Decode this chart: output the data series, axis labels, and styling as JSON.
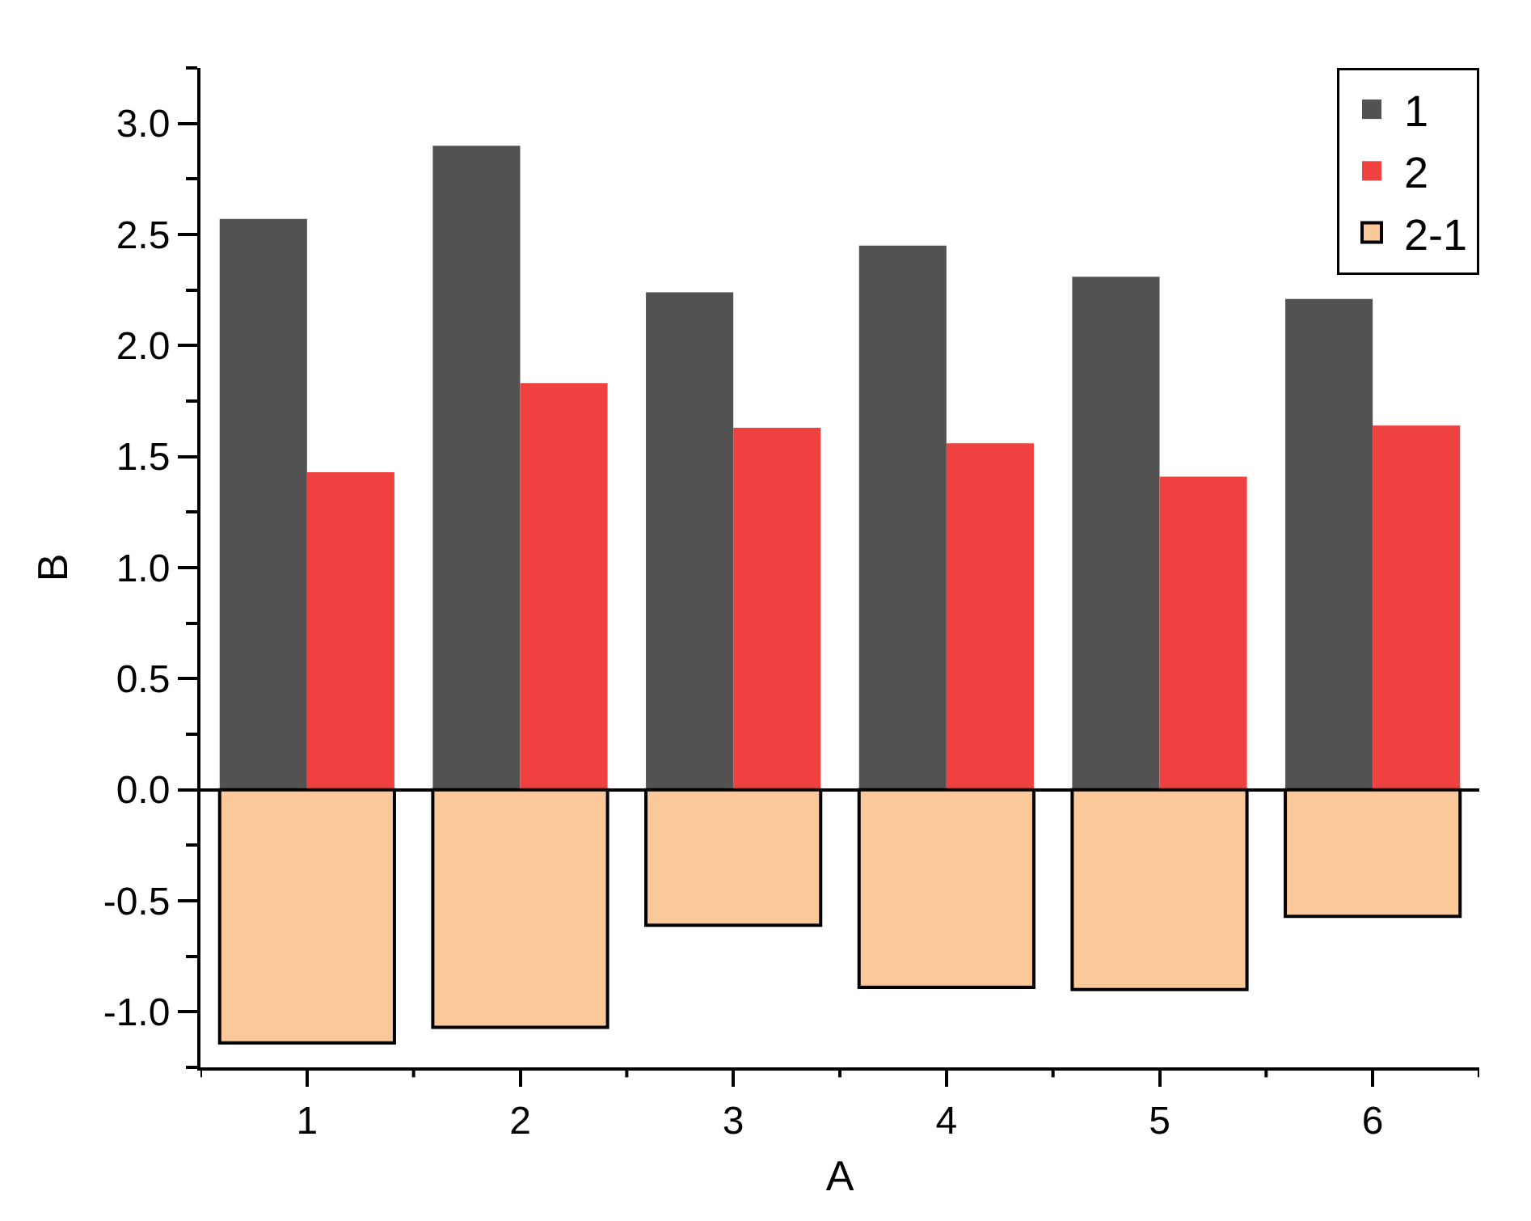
{
  "chart_data": {
    "type": "bar",
    "xlabel": "A",
    "ylabel": "B",
    "categories": [
      "1",
      "2",
      "3",
      "4",
      "5",
      "6"
    ],
    "series": [
      {
        "name": "1",
        "color": "#525252",
        "values": [
          2.57,
          2.9,
          2.24,
          2.45,
          2.31,
          2.21
        ]
      },
      {
        "name": "2",
        "color": "#f04141",
        "values": [
          1.43,
          1.83,
          1.63,
          1.56,
          1.41,
          1.64
        ]
      },
      {
        "name": "2-1",
        "color": "#fbc999",
        "values": [
          -1.14,
          -1.07,
          -0.61,
          -0.89,
          -0.9,
          -0.57
        ]
      }
    ],
    "ylim": [
      -1.25,
      3.25
    ],
    "yticks": [
      {
        "value": -1.25,
        "label": null
      },
      {
        "value": -1.0,
        "label": "-1.0"
      },
      {
        "value": -0.75,
        "label": null
      },
      {
        "value": -0.5,
        "label": "-0.5"
      },
      {
        "value": -0.25,
        "label": null
      },
      {
        "value": 0.0,
        "label": "0.0"
      },
      {
        "value": 0.25,
        "label": null
      },
      {
        "value": 0.5,
        "label": "0.5"
      },
      {
        "value": 0.75,
        "label": null
      },
      {
        "value": 1.0,
        "label": "1.0"
      },
      {
        "value": 1.25,
        "label": null
      },
      {
        "value": 1.5,
        "label": "1.5"
      },
      {
        "value": 1.75,
        "label": null
      },
      {
        "value": 2.0,
        "label": "2.0"
      },
      {
        "value": 2.25,
        "label": null
      },
      {
        "value": 2.5,
        "label": "2.5"
      },
      {
        "value": 2.75,
        "label": null
      },
      {
        "value": 3.0,
        "label": "3.0"
      },
      {
        "value": 3.25,
        "label": null
      }
    ],
    "legend": "top right"
  }
}
